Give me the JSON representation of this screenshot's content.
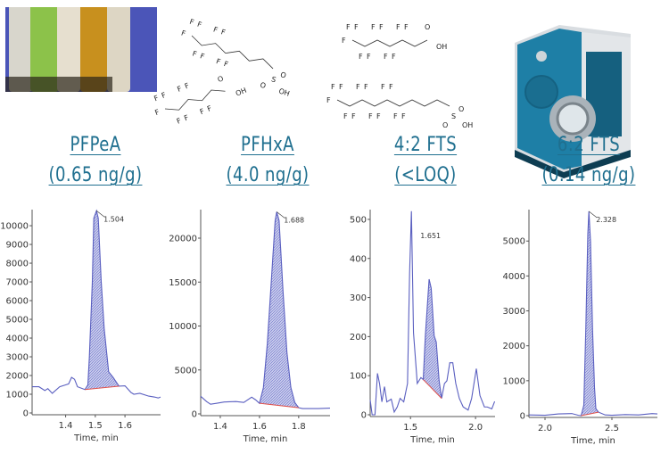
{
  "compounds": [
    {
      "name": "PFPeA",
      "result": "(0.65 ng/g)"
    },
    {
      "name": "PFHxA",
      "result": "(4.0 ng/g)"
    },
    {
      "name": "4:2 FTS",
      "result": "(<LOQ)"
    },
    {
      "name": "6:2 FTS",
      "result": "(0.14 ng/g)"
    }
  ],
  "structure_labels": {
    "fluorine": "F",
    "oxygen": "O",
    "hydroxyl": "OH",
    "sulfur": "S"
  },
  "colors": {
    "title": "#1f6f8f",
    "trace": "#5a5fc0",
    "fill": "#b9bde6",
    "baseline": "#e0504a",
    "instrument": "#1e7fa6"
  },
  "chart_data": [
    {
      "type": "line",
      "title": "PFPeA",
      "xlabel": "Time, min",
      "ylabel": "",
      "xlim": [
        1.287,
        1.72
      ],
      "ylim": [
        0,
        10860
      ],
      "xticks": [
        "1.4",
        "1.5",
        "1.6"
      ],
      "xtick_values": [
        1.4,
        1.5,
        1.6
      ],
      "yticks": [
        "0",
        "1000",
        "2000",
        "3000",
        "4000",
        "5000",
        "6000",
        "7000",
        "8000",
        "9000",
        "10000"
      ],
      "ytick_values": [
        0,
        1000,
        2000,
        3000,
        4000,
        5000,
        6000,
        7000,
        8000,
        9000,
        10000
      ],
      "peak_label": "1.504",
      "peak": [
        1.504,
        10800
      ],
      "integration_baseline": [
        [
          1.465,
          1250
        ],
        [
          1.58,
          1430
        ]
      ],
      "trace": [
        [
          1.287,
          1400
        ],
        [
          1.31,
          1400
        ],
        [
          1.33,
          1200
        ],
        [
          1.34,
          1300
        ],
        [
          1.355,
          1050
        ],
        [
          1.38,
          1400
        ],
        [
          1.4,
          1500
        ],
        [
          1.41,
          1550
        ],
        [
          1.42,
          1900
        ],
        [
          1.43,
          1800
        ],
        [
          1.44,
          1400
        ],
        [
          1.465,
          1250
        ],
        [
          1.475,
          1500
        ],
        [
          1.48,
          3000
        ],
        [
          1.49,
          7000
        ],
        [
          1.495,
          10400
        ],
        [
          1.504,
          10800
        ],
        [
          1.51,
          10400
        ],
        [
          1.52,
          7000
        ],
        [
          1.53,
          4500
        ],
        [
          1.545,
          2200
        ],
        [
          1.56,
          1900
        ],
        [
          1.58,
          1430
        ],
        [
          1.6,
          1450
        ],
        [
          1.62,
          1100
        ],
        [
          1.63,
          1000
        ],
        [
          1.65,
          1050
        ],
        [
          1.68,
          900
        ],
        [
          1.7,
          850
        ],
        [
          1.712,
          800
        ],
        [
          1.72,
          850
        ]
      ]
    },
    {
      "type": "line",
      "title": "PFHxA",
      "xlabel": "Time, min",
      "ylabel": "",
      "xlim": [
        1.3,
        1.96
      ],
      "ylim": [
        0,
        23250
      ],
      "xticks": [
        "1.4",
        "1.6",
        "1.8"
      ],
      "xtick_values": [
        1.4,
        1.6,
        1.8
      ],
      "yticks": [
        "0",
        "5000",
        "10000",
        "15000",
        "20000"
      ],
      "ytick_values": [
        0,
        5000,
        10000,
        15000,
        20000
      ],
      "peak_label": "1.688",
      "peak": [
        1.688,
        23000
      ],
      "integration_baseline": [
        [
          1.6,
          1200
        ],
        [
          1.8,
          700
        ]
      ],
      "trace": [
        [
          1.3,
          2000
        ],
        [
          1.33,
          1400
        ],
        [
          1.35,
          1100
        ],
        [
          1.38,
          1200
        ],
        [
          1.42,
          1350
        ],
        [
          1.48,
          1400
        ],
        [
          1.52,
          1300
        ],
        [
          1.56,
          1900
        ],
        [
          1.58,
          1600
        ],
        [
          1.6,
          1200
        ],
        [
          1.62,
          3000
        ],
        [
          1.64,
          8000
        ],
        [
          1.66,
          15000
        ],
        [
          1.68,
          22000
        ],
        [
          1.688,
          23000
        ],
        [
          1.7,
          22000
        ],
        [
          1.72,
          14000
        ],
        [
          1.74,
          7000
        ],
        [
          1.76,
          3000
        ],
        [
          1.78,
          1300
        ],
        [
          1.8,
          700
        ],
        [
          1.82,
          600
        ],
        [
          1.9,
          600
        ],
        [
          1.96,
          650
        ]
      ]
    },
    {
      "type": "line",
      "title": "4:2 FTS",
      "xlabel": "Time, min",
      "ylabel": "",
      "xlim": [
        1.19,
        2.15
      ],
      "ylim": [
        0,
        525
      ],
      "xticks": [
        "1.5",
        "2.0"
      ],
      "xtick_values": [
        1.5,
        2.0
      ],
      "yticks": [
        "0",
        "100",
        "200",
        "300",
        "400",
        "500"
      ],
      "ytick_values": [
        0,
        100,
        200,
        300,
        400,
        500
      ],
      "peak_label": "1.651",
      "peak": [
        1.651,
        347
      ],
      "integration_baseline": [
        [
          1.598,
          90
        ],
        [
          1.739,
          42
        ]
      ],
      "trace": [
        [
          1.19,
          38
        ],
        [
          1.205,
          0
        ],
        [
          1.227,
          0
        ],
        [
          1.246,
          106
        ],
        [
          1.262,
          80
        ],
        [
          1.28,
          33
        ],
        [
          1.3,
          72
        ],
        [
          1.318,
          33
        ],
        [
          1.352,
          40
        ],
        [
          1.375,
          7
        ],
        [
          1.398,
          20
        ],
        [
          1.42,
          42
        ],
        [
          1.448,
          33
        ],
        [
          1.477,
          80
        ],
        [
          1.493,
          362
        ],
        [
          1.507,
          521
        ],
        [
          1.523,
          210
        ],
        [
          1.552,
          80
        ],
        [
          1.58,
          95
        ],
        [
          1.598,
          90
        ],
        [
          1.614,
          202
        ],
        [
          1.643,
          347
        ],
        [
          1.659,
          324
        ],
        [
          1.682,
          202
        ],
        [
          1.698,
          186
        ],
        [
          1.72,
          87
        ],
        [
          1.739,
          42
        ],
        [
          1.761,
          80
        ],
        [
          1.78,
          87
        ],
        [
          1.802,
          133
        ],
        [
          1.825,
          133
        ],
        [
          1.848,
          80
        ],
        [
          1.875,
          42
        ],
        [
          1.905,
          20
        ],
        [
          1.943,
          12
        ],
        [
          1.97,
          42
        ],
        [
          2.006,
          118
        ],
        [
          2.034,
          49
        ],
        [
          2.068,
          20
        ],
        [
          2.09,
          20
        ],
        [
          2.125,
          15
        ],
        [
          2.147,
          34
        ]
      ]
    },
    {
      "type": "line",
      "title": "6:2 FTS",
      "xlabel": "Time, min",
      "ylabel": "",
      "xlim": [
        1.88,
        2.84
      ],
      "ylim": [
        0,
        5900
      ],
      "xticks": [
        "2.0",
        "2.5"
      ],
      "xtick_values": [
        2.0,
        2.5
      ],
      "yticks": [
        "0",
        "1000",
        "2000",
        "3000",
        "4000",
        "5000"
      ],
      "ytick_values": [
        0,
        1000,
        2000,
        3000,
        4000,
        5000
      ],
      "peak_label": "2.328",
      "peak": [
        2.328,
        5850
      ],
      "integration_baseline": [
        [
          2.27,
          0
        ],
        [
          2.4,
          100
        ]
      ],
      "trace": [
        [
          1.88,
          20
        ],
        [
          2.0,
          10
        ],
        [
          2.1,
          50
        ],
        [
          2.2,
          60
        ],
        [
          2.25,
          10
        ],
        [
          2.27,
          0
        ],
        [
          2.29,
          300
        ],
        [
          2.305,
          2500
        ],
        [
          2.32,
          5200
        ],
        [
          2.328,
          5850
        ],
        [
          2.34,
          5000
        ],
        [
          2.355,
          2500
        ],
        [
          2.37,
          800
        ],
        [
          2.38,
          200
        ],
        [
          2.4,
          100
        ],
        [
          2.45,
          20
        ],
        [
          2.5,
          10
        ],
        [
          2.6,
          30
        ],
        [
          2.7,
          20
        ],
        [
          2.8,
          60
        ],
        [
          2.84,
          50
        ]
      ]
    }
  ]
}
